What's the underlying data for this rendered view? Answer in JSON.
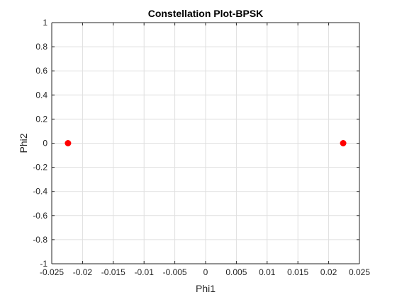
{
  "chart_data": {
    "type": "scatter",
    "title": "Constellation Plot-BPSK",
    "xlabel": "Phi1",
    "ylabel": "Phi2",
    "xlim": [
      -0.025,
      0.025
    ],
    "ylim": [
      -1,
      1
    ],
    "grid": true,
    "x_ticks": [
      -0.025,
      -0.02,
      -0.015,
      -0.01,
      -0.005,
      0,
      0.005,
      0.01,
      0.015,
      0.02,
      0.025
    ],
    "x_tick_labels": [
      "-0.025",
      "-0.02",
      "-0.015",
      "-0.01",
      "-0.005",
      "0",
      "0.005",
      "0.01",
      "0.015",
      "0.02",
      "0.025"
    ],
    "y_ticks": [
      -1,
      -0.8,
      -0.6,
      -0.4,
      -0.2,
      0,
      0.2,
      0.4,
      0.6,
      0.8,
      1
    ],
    "y_tick_labels": [
      "-1",
      "-0.8",
      "-0.6",
      "-0.4",
      "-0.2",
      "0",
      "0.2",
      "0.4",
      "0.6",
      "0.8",
      "1"
    ],
    "series": [
      {
        "color": "#ff0000",
        "marker": "circle",
        "points": [
          {
            "x": -0.02236,
            "y": 0
          },
          {
            "x": 0.02236,
            "y": 0
          }
        ]
      }
    ]
  }
}
